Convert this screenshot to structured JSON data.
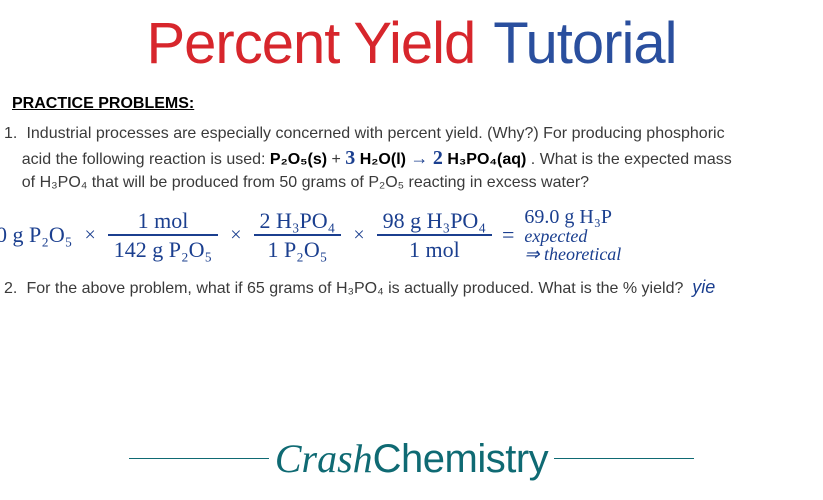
{
  "colors": {
    "red": "#d7262c",
    "blue": "#2a4f9e",
    "ink": "#1b3f8f",
    "teal": "#0f6a73",
    "body_text": "#3a3a3a",
    "black": "#000000"
  },
  "title": {
    "word1": "Percent Yield",
    "word2": "Tutorial",
    "fontsize": 58
  },
  "section_heading": "PRACTICE PROBLEMS:",
  "problem1": {
    "num": "1.",
    "line1": "Industrial processes are especially concerned with percent yield. (Why?) For producing phosphoric",
    "line2a": "acid the following reaction is used:   ",
    "eq_p2o5": "P₂O₅(s)",
    "eq_plus": " + ",
    "coef1": "3",
    "eq_h2o": " H₂O(l) ",
    "arrow": "→",
    "coef2": " 2",
    "eq_h3po4": " H₃PO₄(aq)",
    "line2b": ". What is the expected mass",
    "line3": "of H₃PO₄ that will be produced from 50 grams of P₂O₅ reacting in excess water?"
  },
  "handwork": {
    "start": "0 g P₂O₅",
    "times": "×",
    "f1_top": "1 mol",
    "f1_bot": "142 g P₂O₅",
    "f2_top": "2 H₃PO₄",
    "f2_bot": "1 P₂O₅",
    "f3_top": "98 g H₃PO₄",
    "f3_bot": "1 mol",
    "equals": "=",
    "result": "69.0 g H₃P",
    "note1": "expected",
    "note2": "⇒ theoretical",
    "note3": "yie"
  },
  "problem2": {
    "num": "2.",
    "text": "For the above problem, what if 65 grams of H₃PO₄ is actually produced. What is the % yield?"
  },
  "footer": {
    "crash": "Crash",
    "chem": "Chemistry"
  }
}
